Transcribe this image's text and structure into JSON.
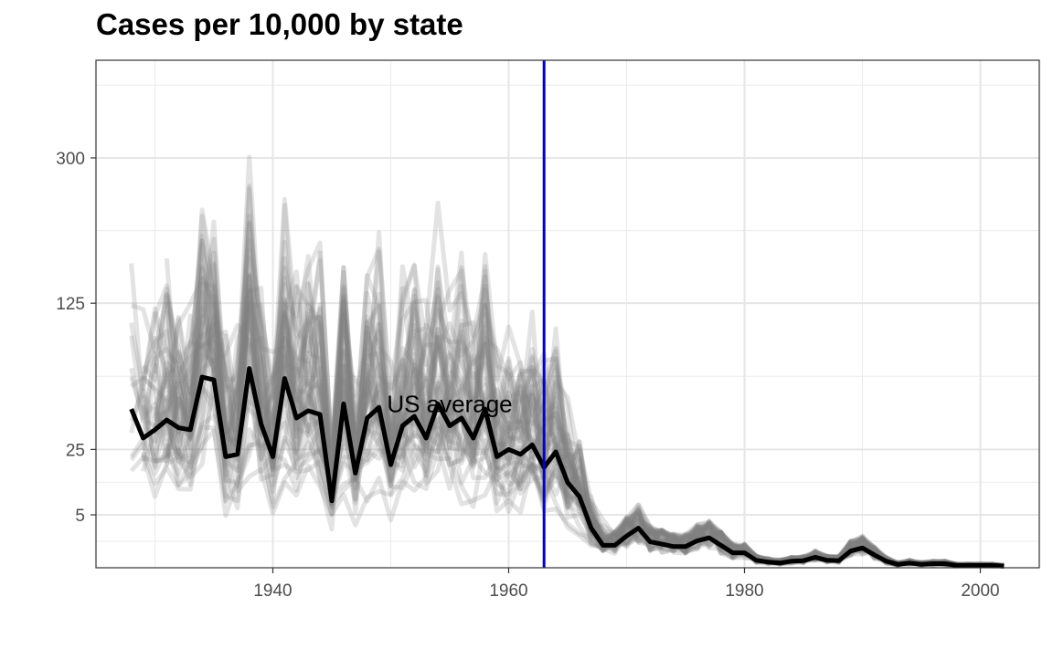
{
  "chart_data": {
    "type": "line",
    "title": "Cases per 10,000 by state",
    "xlabel": "",
    "ylabel": "",
    "y_scale": "sqrt",
    "xlim": [
      1925,
      2005
    ],
    "ylim": [
      0,
      460
    ],
    "x_ticks": [
      1940,
      1960,
      1980,
      2000
    ],
    "x_tick_labels": [
      "1940",
      "1960",
      "1980",
      "2000"
    ],
    "y_ticks": [
      5,
      25,
      125,
      300
    ],
    "y_tick_labels": [
      "5",
      "25",
      "125",
      "300"
    ],
    "grid": true,
    "legend": "none",
    "vline": {
      "x": 1963,
      "color": "#0000cd"
    },
    "annotation": {
      "text": "US average",
      "x": 1955,
      "y": 48
    },
    "colors": {
      "state_lines": "#808080",
      "average_line": "#000000",
      "vline": "#0000cd"
    },
    "series": [
      {
        "role": "average",
        "x": [
          1928,
          1929,
          1930,
          1931,
          1932,
          1933,
          1934,
          1935,
          1936,
          1937,
          1938,
          1939,
          1940,
          1941,
          1942,
          1943,
          1944,
          1945,
          1946,
          1947,
          1948,
          1949,
          1950,
          1951,
          1952,
          1953,
          1954,
          1955,
          1956,
          1957,
          1958,
          1959,
          1960,
          1961,
          1962,
          1963,
          1964,
          1965,
          1966,
          1967,
          1968,
          1969,
          1970,
          1971,
          1972,
          1973,
          1974,
          1975,
          1976,
          1977,
          1978,
          1979,
          1980,
          1981,
          1982,
          1983,
          1984,
          1985,
          1986,
          1987,
          1988,
          1989,
          1990,
          1991,
          1992,
          1993,
          1994,
          1995,
          1996,
          1997,
          1998,
          1999,
          2000,
          2001,
          2002
        ],
        "values": [
          45,
          30,
          34,
          39,
          35,
          34,
          65,
          63,
          22,
          23,
          71,
          37,
          22,
          64,
          40,
          44,
          42,
          8,
          48,
          16,
          40,
          46,
          19,
          36,
          41,
          30,
          48,
          36,
          40,
          30,
          45,
          22,
          25,
          23,
          27,
          18,
          24,
          13,
          9,
          2.8,
          0.9,
          0.9,
          1.8,
          2.8,
          1.2,
          1.0,
          0.8,
          0.8,
          1.3,
          1.6,
          0.9,
          0.4,
          0.4,
          0.1,
          0.06,
          0.04,
          0.08,
          0.09,
          0.2,
          0.1,
          0.09,
          0.5,
          0.7,
          0.3,
          0.08,
          0.02,
          0.04,
          0.02,
          0.03,
          0.03,
          0.01,
          0.01,
          0.01,
          0.01,
          0.005
        ]
      }
    ]
  }
}
